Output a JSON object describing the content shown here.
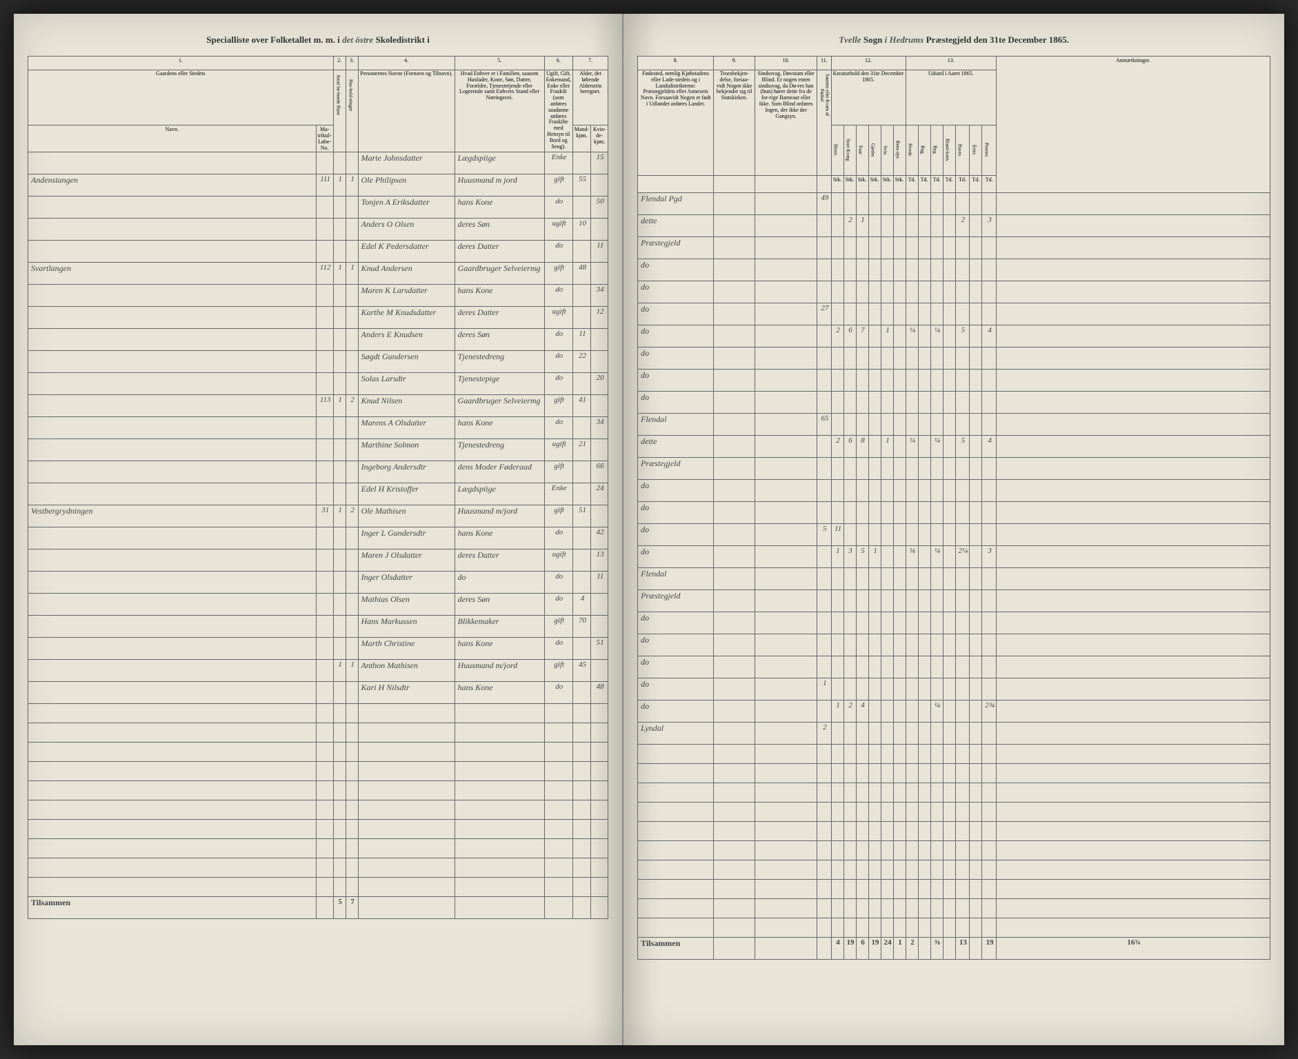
{
  "header": {
    "left_prefix": "Specialliste over Folketallet m. m. i",
    "district_script": "det östre",
    "left_suffix": "Skoledistrikt",
    "right_parish_script": "Tvelle",
    "sogn": "Sogn",
    "right_deanery_script": "i Hedrums",
    "right_suffix": "Præstegjeld den 31te December 1865."
  },
  "columns": {
    "c1": "1.",
    "c2": "2.",
    "c3": "3.",
    "c4": "4.",
    "c5": "5.",
    "c6": "6.",
    "c7": "7.",
    "c8": "8.",
    "c9": "9.",
    "c10": "10.",
    "c11": "11.",
    "c12": "12.",
    "c13": "13.",
    "c1_desc": "Gaardens eller Stedets",
    "c1_sub_navn": "Navn.",
    "c1_sub_matr": "Ma-trikul-Løbe-No.",
    "c2_desc": "Antal be-boede Huse",
    "c3_desc": "Hus-hold-ninger",
    "c4_desc": "Personernes Navne (Fornavn og Tilnavn).",
    "c5_desc": "Hvad Enhver er i Familien, saasom Husfader, Kone, Søn, Datter, Forældre, Tjenestetjende eller Logerende samt Enhvers Stand eller Næringsvei.",
    "c6_desc": "Ugift, Gift, Enkemand, Enke eller Fraskilt (som anføres saadanne anføres Fraskilte med Hensyn til Bord og Seng).",
    "c7_desc": "Alder, det løbende Alderstrin beregnet.",
    "c7_sub_m": "Mand-kjøn.",
    "c7_sub_k": "Kvin-de-kjøn.",
    "c8_desc": "Fødested, nemlig Kjøbstadens eller Lade-stedets og i Landsdistrikterne: Præstegjeldets eller Annexets Navn. Forsaavidt Nogen er født i Udlandet anføres Landet.",
    "c9_desc": "Troesbekjen-delse, forsaa-vidt Nogen ikke bekjender sig til Statskirken.",
    "c10_desc": "Sindssvag, Døvstum eller Blind. Er nogen enten sindssvag, da Dø-res han (hun) hører dette fra de for-rige Barneaar eller ikke. Som Blind anføres Ingen, der ikke der Gangsyn.",
    "c11_desc": "Sammo eller Kvæn af Fødsel",
    "c12_desc": "Kreaturhold den 31te December 1865.",
    "c12_heste": "Heste.",
    "c12_stort": "Stort Kvæg.",
    "c12_faar": "Faar.",
    "c12_gjed": "Gjeder.",
    "c12_svin": "Svin.",
    "c12_ren": "Rens-dyr.",
    "c13_desc": "Udsæd i Aaret 1865.",
    "c13_hvede": "Hvede.",
    "c13_rug": "Rug.",
    "c13_byg": "Byg.",
    "c13_bland": "Bland-korn.",
    "c13_havre": "Havre.",
    "c13_erter": "Erter.",
    "c13_pot": "Poteter.",
    "anm": "Anmærkninger.",
    "stk": "Stk.",
    "td": "Td."
  },
  "rows": [
    {
      "sted": "",
      "matr": "",
      "hus": "",
      "fam": "",
      "navn": "Marte Johnsdatter",
      "stand": "Lægdspiige",
      "sivil": "Enke",
      "m": "",
      "k": "15",
      "fode": "Flendal Pgd",
      "c11": "49",
      "heste": "",
      "stort": "",
      "faar": "",
      "gjed": "",
      "svin": "",
      "ren": "",
      "hvede": "",
      "rug": "",
      "byg": "",
      "bland": "",
      "havre": "",
      "erter": "",
      "pot": ""
    },
    {
      "sted": "Andenstangen",
      "matr": "111",
      "hus": "1",
      "fam": "1",
      "navn": "Ole Philipsen",
      "stand": "Huusmand m jord",
      "sivil": "gift",
      "m": "55",
      "k": "",
      "fode": "dette",
      "c11": "",
      "heste": "",
      "stort": "2",
      "faar": "1",
      "gjed": "",
      "svin": "",
      "ren": "",
      "hvede": "",
      "rug": "",
      "byg": "",
      "bland": "",
      "havre": "2",
      "erter": "",
      "pot": "3"
    },
    {
      "sted": "",
      "matr": "",
      "hus": "",
      "fam": "",
      "navn": "Tonjen A Eriksdatter",
      "stand": "hans Kone",
      "sivil": "do",
      "m": "",
      "k": "50",
      "fode": "Præstegjeld",
      "c11": "",
      "heste": "",
      "stort": "",
      "faar": "",
      "gjed": "",
      "svin": "",
      "ren": "",
      "hvede": "",
      "rug": "",
      "byg": "",
      "bland": "",
      "havre": "",
      "erter": "",
      "pot": ""
    },
    {
      "sted": "",
      "matr": "",
      "hus": "",
      "fam": "",
      "navn": "Anders O Olsen",
      "stand": "deres Søn",
      "sivil": "ugift",
      "m": "10",
      "k": "",
      "fode": "do",
      "c11": "",
      "heste": "",
      "stort": "",
      "faar": "",
      "gjed": "",
      "svin": "",
      "ren": "",
      "hvede": "",
      "rug": "",
      "byg": "",
      "bland": "",
      "havre": "",
      "erter": "",
      "pot": ""
    },
    {
      "sted": "",
      "matr": "",
      "hus": "",
      "fam": "",
      "navn": "Edel K Pedersdatter",
      "stand": "deres Datter",
      "sivil": "do",
      "m": "",
      "k": "11",
      "fode": "do",
      "c11": "",
      "heste": "",
      "stort": "",
      "faar": "",
      "gjed": "",
      "svin": "",
      "ren": "",
      "hvede": "",
      "rug": "",
      "byg": "",
      "bland": "",
      "havre": "",
      "erter": "",
      "pot": ""
    },
    {
      "sted": "Svartlangen",
      "matr": "112",
      "hus": "1",
      "fam": "1",
      "navn": "Knud Andersen",
      "stand": "Gaardbruger Selveiermg",
      "sivil": "gift",
      "m": "48",
      "k": "",
      "fode": "do",
      "c11": "27",
      "heste": "",
      "stort": "",
      "faar": "",
      "gjed": "",
      "svin": "",
      "ren": "",
      "hvede": "",
      "rug": "",
      "byg": "",
      "bland": "",
      "havre": "",
      "erter": "",
      "pot": ""
    },
    {
      "sted": "",
      "matr": "",
      "hus": "",
      "fam": "",
      "navn": "Maren K Larsdatter",
      "stand": "hans Kone",
      "sivil": "do",
      "m": "",
      "k": "34",
      "fode": "do",
      "c11": "",
      "heste": "2",
      "stort": "6",
      "faar": "7",
      "gjed": "",
      "svin": "1",
      "ren": "",
      "hvede": "¼",
      "rug": "",
      "byg": "¼",
      "bland": "",
      "havre": "5",
      "erter": "",
      "pot": "4"
    },
    {
      "sted": "",
      "matr": "",
      "hus": "",
      "fam": "",
      "navn": "Karthe M Knudsdatter",
      "stand": "deres Datter",
      "sivil": "ugift",
      "m": "",
      "k": "12",
      "fode": "do",
      "c11": "",
      "heste": "",
      "stort": "",
      "faar": "",
      "gjed": "",
      "svin": "",
      "ren": "",
      "hvede": "",
      "rug": "",
      "byg": "",
      "bland": "",
      "havre": "",
      "erter": "",
      "pot": ""
    },
    {
      "sted": "",
      "matr": "",
      "hus": "",
      "fam": "",
      "navn": "Anders E Knudsen",
      "stand": "deres Søn",
      "sivil": "do",
      "m": "11",
      "k": "",
      "fode": "do",
      "c11": "",
      "heste": "",
      "stort": "",
      "faar": "",
      "gjed": "",
      "svin": "",
      "ren": "",
      "hvede": "",
      "rug": "",
      "byg": "",
      "bland": "",
      "havre": "",
      "erter": "",
      "pot": ""
    },
    {
      "sted": "",
      "matr": "",
      "hus": "",
      "fam": "",
      "navn": "Søgdt Gundersen",
      "stand": "Tjenestedreng",
      "sivil": "do",
      "m": "22",
      "k": "",
      "fode": "do",
      "c11": "",
      "heste": "",
      "stort": "",
      "faar": "",
      "gjed": "",
      "svin": "",
      "ren": "",
      "hvede": "",
      "rug": "",
      "byg": "",
      "bland": "",
      "havre": "",
      "erter": "",
      "pot": ""
    },
    {
      "sted": "",
      "matr": "",
      "hus": "",
      "fam": "",
      "navn": "Solas Larsdtr",
      "stand": "Tjenestepige",
      "sivil": "do",
      "m": "",
      "k": "20",
      "fode": "Flendal",
      "c11": "65",
      "heste": "",
      "stort": "",
      "faar": "",
      "gjed": "",
      "svin": "",
      "ren": "",
      "hvede": "",
      "rug": "",
      "byg": "",
      "bland": "",
      "havre": "",
      "erter": "",
      "pot": ""
    },
    {
      "sted": "",
      "matr": "113",
      "hus": "1",
      "fam": "2",
      "navn": "Knud Nilsen",
      "stand": "Gaardbruger Selveiermg",
      "sivil": "gift",
      "m": "41",
      "k": "",
      "fode": "dette",
      "c11": "",
      "heste": "2",
      "stort": "6",
      "faar": "8",
      "gjed": "",
      "svin": "1",
      "ren": "",
      "hvede": "¼",
      "rug": "",
      "byg": "¼",
      "bland": "",
      "havre": "5",
      "erter": "",
      "pot": "4"
    },
    {
      "sted": "",
      "matr": "",
      "hus": "",
      "fam": "",
      "navn": "Marens A Olsdatter",
      "stand": "hans Kone",
      "sivil": "do",
      "m": "",
      "k": "34",
      "fode": "Præstegjeld",
      "c11": "",
      "heste": "",
      "stort": "",
      "faar": "",
      "gjed": "",
      "svin": "",
      "ren": "",
      "hvede": "",
      "rug": "",
      "byg": "",
      "bland": "",
      "havre": "",
      "erter": "",
      "pot": ""
    },
    {
      "sted": "",
      "matr": "",
      "hus": "",
      "fam": "",
      "navn": "Marthine Solmon",
      "stand": "Tjenestedreng",
      "sivil": "ugift",
      "m": "21",
      "k": "",
      "fode": "do",
      "c11": "",
      "heste": "",
      "stort": "",
      "faar": "",
      "gjed": "",
      "svin": "",
      "ren": "",
      "hvede": "",
      "rug": "",
      "byg": "",
      "bland": "",
      "havre": "",
      "erter": "",
      "pot": ""
    },
    {
      "sted": "",
      "matr": "",
      "hus": "",
      "fam": "",
      "navn": "Ingeborg Andersdtr",
      "stand": "dens Moder Føderaad",
      "sivil": "gift",
      "m": "",
      "k": "66",
      "fode": "do",
      "c11": "",
      "heste": "",
      "stort": "",
      "faar": "",
      "gjed": "",
      "svin": "",
      "ren": "",
      "hvede": "",
      "rug": "",
      "byg": "",
      "bland": "",
      "havre": "",
      "erter": "",
      "pot": ""
    },
    {
      "sted": "",
      "matr": "",
      "hus": "",
      "fam": "",
      "navn": "Edel H Kristoffer",
      "stand": "Lægdspiige",
      "sivil": "Enke",
      "m": "",
      "k": "24",
      "fode": "do",
      "c11": "5",
      "heste": "11",
      "stort": "",
      "faar": "",
      "gjed": "",
      "svin": "",
      "ren": "",
      "hvede": "",
      "rug": "",
      "byg": "",
      "bland": "",
      "havre": "",
      "erter": "",
      "pot": ""
    },
    {
      "sted": "Vestbergrydningen",
      "matr": "31",
      "hus": "1",
      "fam": "2",
      "navn": "Ole Mathisen",
      "stand": "Huusmand m/jord",
      "sivil": "gift",
      "m": "51",
      "k": "",
      "fode": "do",
      "c11": "",
      "heste": "1",
      "stort": "3",
      "faar": "5",
      "gjed": "1",
      "svin": "",
      "ren": "",
      "hvede": "⅛",
      "rug": "",
      "byg": "¼",
      "bland": "",
      "havre": "2¼",
      "erter": "",
      "pot": "3"
    },
    {
      "sted": "",
      "matr": "",
      "hus": "",
      "fam": "",
      "navn": "Inger L Gundersdtr",
      "stand": "hans Kone",
      "sivil": "do",
      "m": "",
      "k": "42",
      "fode": "Flendal",
      "c11": "",
      "heste": "",
      "stort": "",
      "faar": "",
      "gjed": "",
      "svin": "",
      "ren": "",
      "hvede": "",
      "rug": "",
      "byg": "",
      "bland": "",
      "havre": "",
      "erter": "",
      "pot": ""
    },
    {
      "sted": "",
      "matr": "",
      "hus": "",
      "fam": "",
      "navn": "Maren J Olsdatter",
      "stand": "deres Datter",
      "sivil": "ugift",
      "m": "",
      "k": "13",
      "fode": "Præstegjeld",
      "c11": "",
      "heste": "",
      "stort": "",
      "faar": "",
      "gjed": "",
      "svin": "",
      "ren": "",
      "hvede": "",
      "rug": "",
      "byg": "",
      "bland": "",
      "havre": "",
      "erter": "",
      "pot": ""
    },
    {
      "sted": "",
      "matr": "",
      "hus": "",
      "fam": "",
      "navn": "Inger Olsdatter",
      "stand": "do",
      "sivil": "do",
      "m": "",
      "k": "11",
      "fode": "do",
      "c11": "",
      "heste": "",
      "stort": "",
      "faar": "",
      "gjed": "",
      "svin": "",
      "ren": "",
      "hvede": "",
      "rug": "",
      "byg": "",
      "bland": "",
      "havre": "",
      "erter": "",
      "pot": ""
    },
    {
      "sted": "",
      "matr": "",
      "hus": "",
      "fam": "",
      "navn": "Mathias Olsen",
      "stand": "deres Søn",
      "sivil": "do",
      "m": "4",
      "k": "",
      "fode": "do",
      "c11": "",
      "heste": "",
      "stort": "",
      "faar": "",
      "gjed": "",
      "svin": "",
      "ren": "",
      "hvede": "",
      "rug": "",
      "byg": "",
      "bland": "",
      "havre": "",
      "erter": "",
      "pot": ""
    },
    {
      "sted": "",
      "matr": "",
      "hus": "",
      "fam": "",
      "navn": "Hans Markussen",
      "stand": "Blikkemaker",
      "sivil": "gift",
      "m": "70",
      "k": "",
      "fode": "do",
      "c11": "",
      "heste": "",
      "stort": "",
      "faar": "",
      "gjed": "",
      "svin": "",
      "ren": "",
      "hvede": "",
      "rug": "",
      "byg": "",
      "bland": "",
      "havre": "",
      "erter": "",
      "pot": ""
    },
    {
      "sted": "",
      "matr": "",
      "hus": "",
      "fam": "",
      "navn": "Marth Christine",
      "stand": "hans Kone",
      "sivil": "do",
      "m": "",
      "k": "51",
      "fode": "do",
      "c11": "1",
      "heste": "",
      "stort": "",
      "faar": "",
      "gjed": "",
      "svin": "",
      "ren": "",
      "hvede": "",
      "rug": "",
      "byg": "",
      "bland": "",
      "havre": "",
      "erter": "",
      "pot": ""
    },
    {
      "sted": "",
      "matr": "",
      "hus": "1",
      "fam": "1",
      "navn": "Anthon Mathisen",
      "stand": "Huusmand m/jord",
      "sivil": "gift",
      "m": "45",
      "k": "",
      "fode": "do",
      "c11": "",
      "heste": "1",
      "stort": "2",
      "faar": "4",
      "gjed": "",
      "svin": "",
      "ren": "",
      "hvede": "",
      "rug": "",
      "byg": "¼",
      "bland": "",
      "havre": "",
      "erter": "",
      "pot": "2¾"
    },
    {
      "sted": "",
      "matr": "",
      "hus": "",
      "fam": "",
      "navn": "Kari H Nilsdtr",
      "stand": "hans Kone",
      "sivil": "do",
      "m": "",
      "k": "48",
      "fode": "Lyndal",
      "c11": "2",
      "heste": "",
      "stort": "",
      "faar": "",
      "gjed": "",
      "svin": "",
      "ren": "",
      "hvede": "",
      "rug": "",
      "byg": "",
      "bland": "",
      "havre": "",
      "erter": "",
      "pot": ""
    }
  ],
  "footer": {
    "tilsammen": "Tilsammen",
    "left_hus": "5",
    "left_fam": "7",
    "right": {
      "heste": "4",
      "stort": "19",
      "faar": "6",
      "gjed": "19",
      "svin": "24",
      "ren": "1",
      "hvede": "2",
      "rug": "",
      "byg": "⅜",
      "bland": "",
      "havre": "13",
      "erter": "",
      "pot": "19",
      "last": "16¾"
    }
  }
}
